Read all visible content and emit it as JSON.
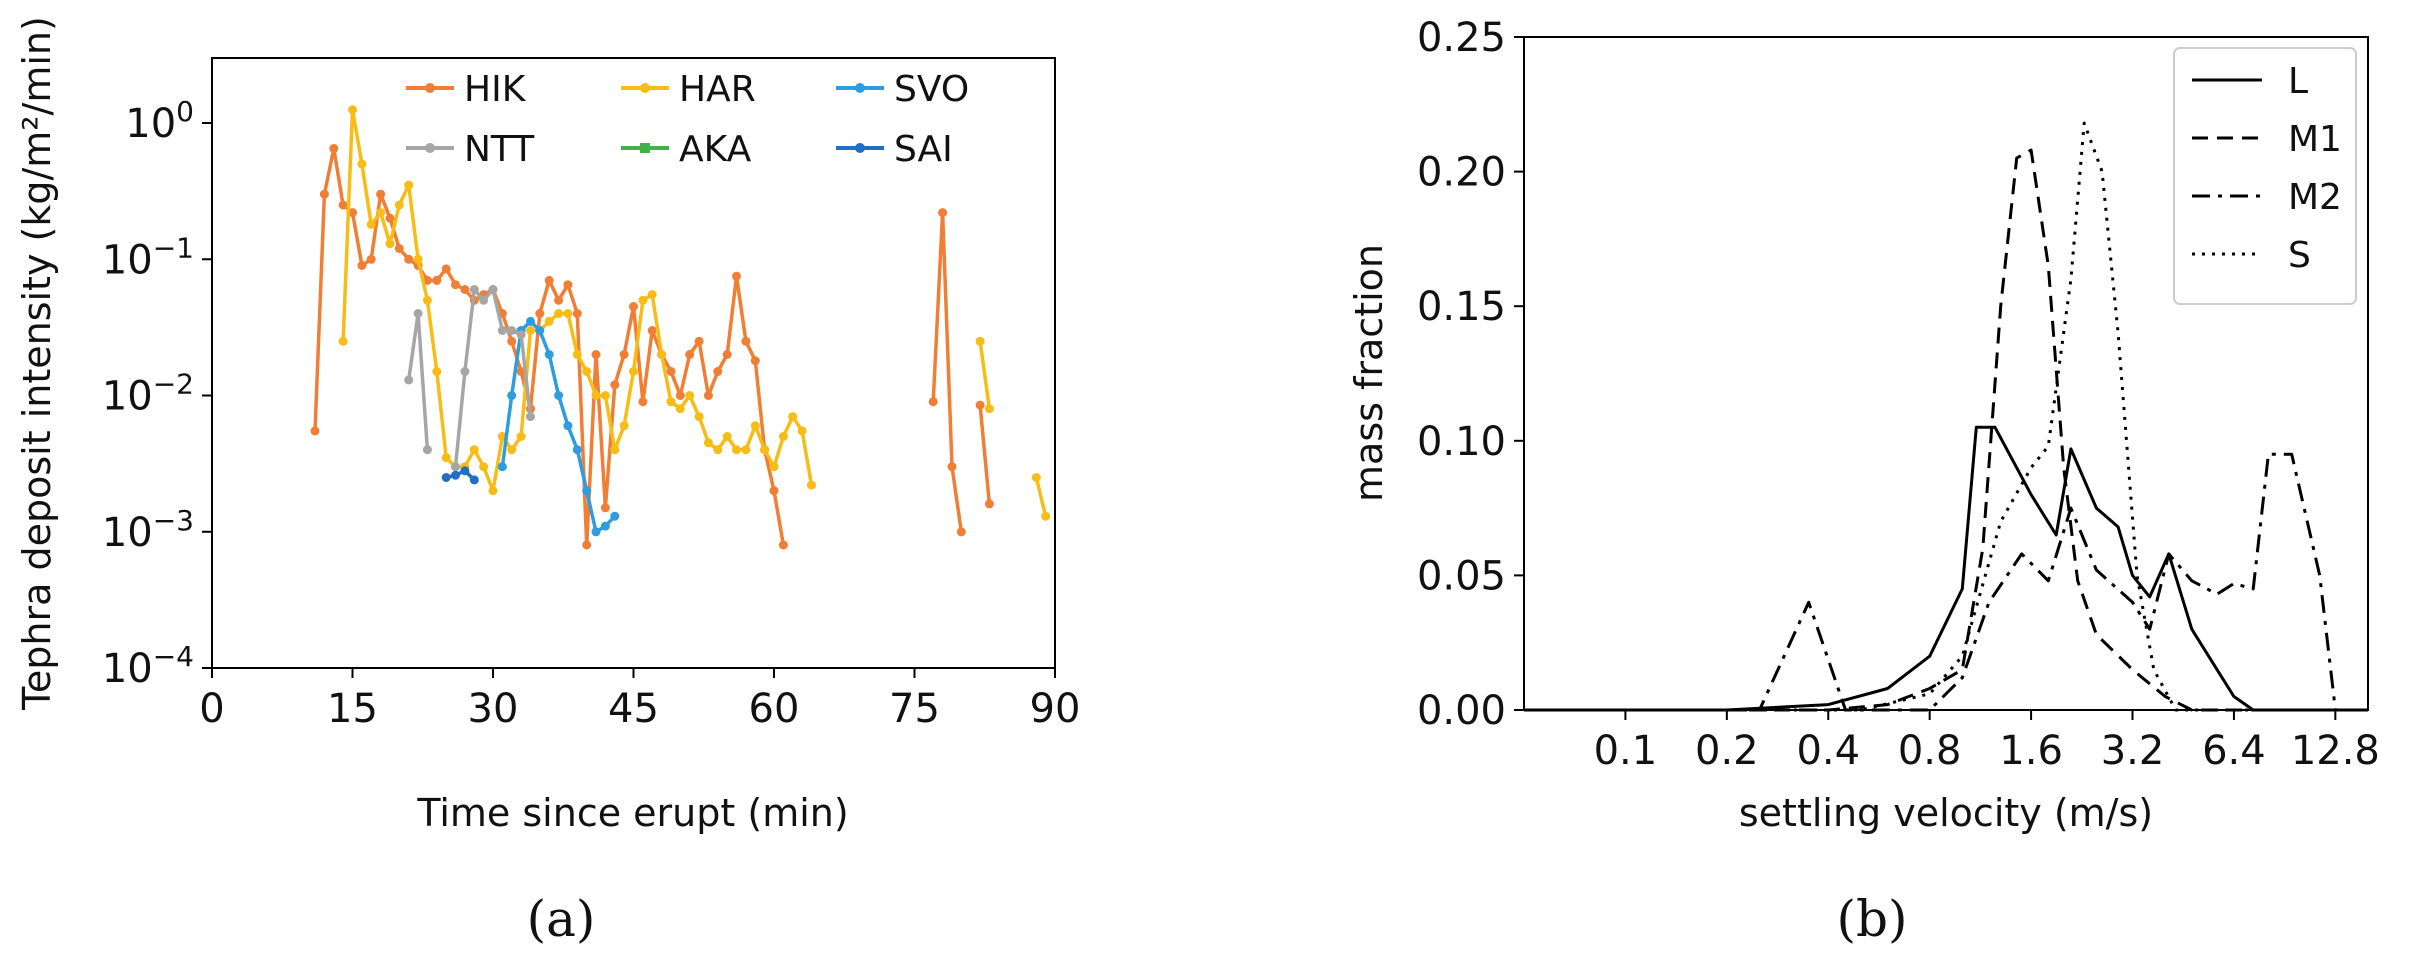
{
  "chart_data": [
    {
      "type": "line",
      "panel_label": "(a)",
      "xlabel": "Time since erupt (min)",
      "ylabel": "Tephra deposit intensity (kg/m²/min)",
      "xlim": [
        0,
        90
      ],
      "xticks": [
        0,
        15,
        30,
        45,
        60,
        75,
        90
      ],
      "ylim": [
        0.0001,
        3
      ],
      "yscale": "log",
      "yticks": [
        {
          "value": 1,
          "exp": "0"
        },
        {
          "value": 0.1,
          "exp": "-1"
        },
        {
          "value": 0.01,
          "exp": "-2"
        },
        {
          "value": 0.001,
          "exp": "-3"
        },
        {
          "value": 0.0001,
          "exp": "-4"
        }
      ],
      "ytick_base": "10",
      "legend": "top-right",
      "series": [
        {
          "name": "HIK",
          "color": "#f07e35",
          "marker": "circle",
          "segments": [
            [
              [
                11,
                0.0055
              ],
              [
                12,
                0.3
              ],
              [
                13,
                0.65
              ],
              [
                14,
                0.25
              ],
              [
                15,
                0.22
              ],
              [
                16,
                0.09
              ],
              [
                17,
                0.1
              ],
              [
                18,
                0.3
              ],
              [
                19,
                0.2
              ],
              [
                20,
                0.12
              ],
              [
                21,
                0.1
              ],
              [
                22,
                0.09
              ],
              [
                23,
                0.07
              ],
              [
                24,
                0.07
              ],
              [
                25,
                0.085
              ],
              [
                26,
                0.065
              ],
              [
                27,
                0.06
              ],
              [
                28,
                0.05
              ],
              [
                29,
                0.055
              ],
              [
                30,
                0.06
              ],
              [
                31,
                0.04
              ],
              [
                32,
                0.025
              ],
              [
                33,
                0.015
              ],
              [
                34,
                0.008
              ],
              [
                35,
                0.04
              ],
              [
                36,
                0.07
              ],
              [
                37,
                0.05
              ],
              [
                38,
                0.065
              ],
              [
                39,
                0.04
              ],
              [
                40,
                0.0008
              ],
              [
                41,
                0.02
              ],
              [
                42,
                0.0015
              ],
              [
                43,
                0.012
              ],
              [
                44,
                0.02
              ],
              [
                45,
                0.045
              ],
              [
                46,
                0.009
              ],
              [
                47,
                0.03
              ],
              [
                48,
                0.02
              ],
              [
                49,
                0.015
              ],
              [
                50,
                0.01
              ],
              [
                51,
                0.02
              ],
              [
                52,
                0.025
              ],
              [
                53,
                0.01
              ],
              [
                54,
                0.015
              ],
              [
                55,
                0.02
              ],
              [
                56,
                0.075
              ],
              [
                57,
                0.025
              ],
              [
                58,
                0.018
              ],
              [
                59,
                0.004
              ],
              [
                60,
                0.002
              ],
              [
                61,
                0.0008
              ]
            ],
            [
              [
                77,
                0.009
              ],
              [
                78,
                0.22
              ],
              [
                79,
                0.003
              ],
              [
                80,
                0.001
              ]
            ],
            [
              [
                82,
                0.0085
              ],
              [
                83,
                0.0016
              ]
            ]
          ]
        },
        {
          "name": "HAR",
          "color": "#f7bd16",
          "marker": "circle",
          "segments": [
            [
              [
                14,
                0.025
              ],
              [
                15,
                1.25
              ],
              [
                16,
                0.5
              ],
              [
                17,
                0.18
              ],
              [
                18,
                0.22
              ],
              [
                19,
                0.13
              ],
              [
                20,
                0.25
              ],
              [
                21,
                0.35
              ],
              [
                22,
                0.1
              ],
              [
                23,
                0.05
              ],
              [
                24,
                0.015
              ],
              [
                25,
                0.0035
              ],
              [
                26,
                0.003
              ],
              [
                27,
                0.003
              ],
              [
                28,
                0.004
              ],
              [
                29,
                0.003
              ],
              [
                30,
                0.002
              ],
              [
                31,
                0.005
              ],
              [
                32,
                0.004
              ],
              [
                33,
                0.005
              ],
              [
                34,
                0.03
              ],
              [
                35,
                0.03
              ],
              [
                36,
                0.035
              ],
              [
                37,
                0.04
              ],
              [
                38,
                0.04
              ],
              [
                39,
                0.02
              ],
              [
                40,
                0.015
              ],
              [
                41,
                0.01
              ],
              [
                42,
                0.01
              ],
              [
                43,
                0.004
              ],
              [
                44,
                0.006
              ],
              [
                45,
                0.015
              ],
              [
                46,
                0.05
              ],
              [
                47,
                0.055
              ],
              [
                48,
                0.02
              ],
              [
                49,
                0.009
              ],
              [
                50,
                0.008
              ],
              [
                51,
                0.01
              ],
              [
                52,
                0.007
              ],
              [
                53,
                0.0045
              ],
              [
                54,
                0.004
              ],
              [
                55,
                0.005
              ],
              [
                56,
                0.004
              ],
              [
                57,
                0.004
              ],
              [
                58,
                0.006
              ],
              [
                59,
                0.004
              ],
              [
                60,
                0.003
              ],
              [
                61,
                0.005
              ],
              [
                62,
                0.007
              ],
              [
                63,
                0.0055
              ],
              [
                64,
                0.0022
              ]
            ],
            [
              [
                82,
                0.025
              ],
              [
                83,
                0.008
              ]
            ],
            [
              [
                88,
                0.0025
              ],
              [
                89,
                0.0013
              ]
            ]
          ]
        },
        {
          "name": "SVO",
          "color": "#2e9de0",
          "marker": "circle",
          "segments": [
            [
              [
                31,
                0.003
              ],
              [
                32,
                0.01
              ],
              [
                33,
                0.03
              ],
              [
                34,
                0.035
              ],
              [
                35,
                0.03
              ],
              [
                36,
                0.02
              ],
              [
                37,
                0.01
              ],
              [
                38,
                0.006
              ],
              [
                39,
                0.004
              ],
              [
                40,
                0.002
              ],
              [
                41,
                0.001
              ],
              [
                42,
                0.0011
              ],
              [
                43,
                0.0013
              ]
            ]
          ]
        },
        {
          "name": "NTT",
          "color": "#a6a6a6",
          "marker": "circle",
          "segments": [
            [
              [
                21,
                0.013
              ],
              [
                22,
                0.04
              ],
              [
                23,
                0.004
              ]
            ],
            [
              [
                26,
                0.003
              ],
              [
                27,
                0.015
              ],
              [
                28,
                0.06
              ],
              [
                29,
                0.05
              ],
              [
                30,
                0.06
              ],
              [
                31,
                0.03
              ],
              [
                32,
                0.03
              ],
              [
                33,
                0.028
              ],
              [
                34,
                0.007
              ]
            ]
          ]
        },
        {
          "name": "AKA",
          "color": "#43b04a",
          "marker": "square",
          "segments": []
        },
        {
          "name": "SAI",
          "color": "#1f6fc5",
          "marker": "circle",
          "segments": [
            [
              [
                25,
                0.0025
              ],
              [
                26,
                0.0026
              ],
              [
                27,
                0.0028
              ],
              [
                28,
                0.0024
              ]
            ]
          ]
        }
      ]
    },
    {
      "type": "line",
      "panel_label": "(b)",
      "xlabel": "settling velocity (m/s)",
      "ylabel": "mass fraction",
      "xscale": "log2",
      "xlim": [
        0.05,
        16
      ],
      "xticks": [
        0.1,
        0.2,
        0.4,
        0.8,
        1.6,
        3.2,
        6.4,
        12.8
      ],
      "xtick_labels": [
        "0.1",
        "0.2",
        "0.4",
        "0.8",
        "1.6",
        "3.2",
        "6.4",
        "12.8"
      ],
      "ylim": [
        0,
        0.25
      ],
      "yticks": [
        0,
        0.05,
        0.1,
        0.15,
        0.2,
        0.25
      ],
      "ytick_labels": [
        "0.00",
        "0.05",
        "0.10",
        "0.15",
        "0.20",
        "0.25"
      ],
      "legend": "top-right",
      "series": [
        {
          "name": "L",
          "style": "solid",
          "points": [
            [
              0.05,
              0
            ],
            [
              0.2,
              0
            ],
            [
              0.4,
              0.002
            ],
            [
              0.6,
              0.008
            ],
            [
              0.8,
              0.02
            ],
            [
              1.0,
              0.045
            ],
            [
              1.1,
              0.105
            ],
            [
              1.25,
              0.105
            ],
            [
              1.6,
              0.08
            ],
            [
              1.9,
              0.065
            ],
            [
              2.1,
              0.097
            ],
            [
              2.5,
              0.075
            ],
            [
              2.9,
              0.068
            ],
            [
              3.2,
              0.05
            ],
            [
              3.6,
              0.042
            ],
            [
              4.1,
              0.058
            ],
            [
              4.8,
              0.03
            ],
            [
              5.7,
              0.015
            ],
            [
              6.4,
              0.005
            ],
            [
              7.3,
              0
            ],
            [
              16,
              0
            ]
          ]
        },
        {
          "name": "M1",
          "style": "dashed",
          "points": [
            [
              0.05,
              0
            ],
            [
              0.4,
              0
            ],
            [
              0.6,
              0.002
            ],
            [
              0.8,
              0.008
            ],
            [
              1.0,
              0.015
            ],
            [
              1.15,
              0.06
            ],
            [
              1.3,
              0.15
            ],
            [
              1.45,
              0.205
            ],
            [
              1.6,
              0.208
            ],
            [
              1.8,
              0.165
            ],
            [
              2.0,
              0.09
            ],
            [
              2.2,
              0.048
            ],
            [
              2.5,
              0.028
            ],
            [
              3.2,
              0.015
            ],
            [
              4.0,
              0.005
            ],
            [
              4.8,
              0
            ],
            [
              16,
              0
            ]
          ]
        },
        {
          "name": "M2",
          "style": "dashdot",
          "points": [
            [
              0.05,
              0
            ],
            [
              0.25,
              0
            ],
            [
              0.35,
              0.04
            ],
            [
              0.45,
              0
            ],
            [
              0.8,
              0
            ],
            [
              1.0,
              0.012
            ],
            [
              1.2,
              0.04
            ],
            [
              1.5,
              0.058
            ],
            [
              1.8,
              0.048
            ],
            [
              2.1,
              0.075
            ],
            [
              2.5,
              0.052
            ],
            [
              3.2,
              0.04
            ],
            [
              3.6,
              0.03
            ],
            [
              4.1,
              0.058
            ],
            [
              4.8,
              0.048
            ],
            [
              5.7,
              0.043
            ],
            [
              6.4,
              0.047
            ],
            [
              7.3,
              0.045
            ],
            [
              8.1,
              0.095
            ],
            [
              9.5,
              0.095
            ],
            [
              11.5,
              0.05
            ],
            [
              12.8,
              0
            ],
            [
              16,
              0
            ]
          ]
        },
        {
          "name": "S",
          "style": "dotted",
          "points": [
            [
              0.05,
              0
            ],
            [
              0.5,
              0
            ],
            [
              0.8,
              0.006
            ],
            [
              1.0,
              0.02
            ],
            [
              1.3,
              0.07
            ],
            [
              1.6,
              0.09
            ],
            [
              1.8,
              0.098
            ],
            [
              2.1,
              0.16
            ],
            [
              2.3,
              0.218
            ],
            [
              2.6,
              0.2
            ],
            [
              2.9,
              0.14
            ],
            [
              3.3,
              0.05
            ],
            [
              3.7,
              0.015
            ],
            [
              4.3,
              0
            ],
            [
              16,
              0
            ]
          ]
        }
      ]
    }
  ]
}
